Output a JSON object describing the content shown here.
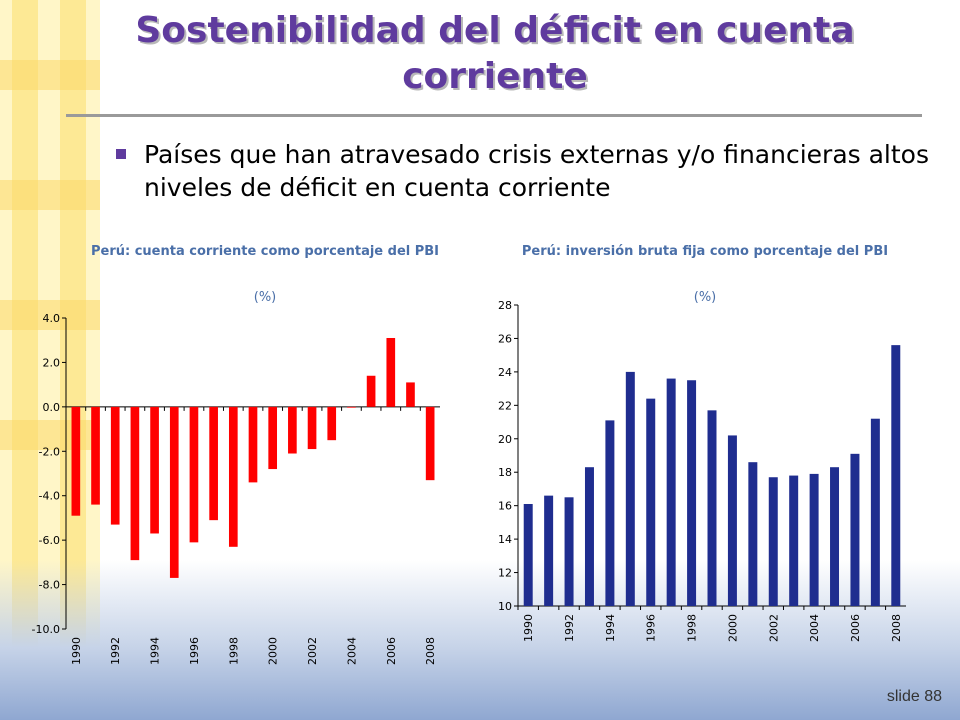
{
  "slide": {
    "title": "Sostenibilidad del déficit en cuenta corriente",
    "bullet": "Países que han atravesado crisis externas y/o financieras altos niveles de déficit en cuenta corriente",
    "slide_number": "slide 88",
    "accent_color": "#5f3b9e",
    "sidebar_colors": [
      "#fde68c",
      "#fbd86a",
      "#fff6c8"
    ]
  },
  "chart_data": [
    {
      "type": "bar",
      "title": "Perú: cuenta corriente como porcentaje del PBI",
      "subtitle": "(%)",
      "categories": [
        "1990",
        "1991",
        "1992",
        "1993",
        "1994",
        "1995",
        "1996",
        "1997",
        "1998",
        "1999",
        "2000",
        "2001",
        "2002",
        "2003",
        "2004",
        "2005",
        "2006",
        "2007",
        "2008"
      ],
      "tick_labels": [
        "1990",
        "1992",
        "1994",
        "1996",
        "1998",
        "2000",
        "2002",
        "2004",
        "2006",
        "2008"
      ],
      "values": [
        -4.9,
        -4.4,
        -5.3,
        -6.9,
        -5.7,
        -7.7,
        -6.1,
        -5.1,
        -6.3,
        -3.4,
        -2.8,
        -2.1,
        -1.9,
        -1.5,
        0.0,
        1.4,
        3.1,
        1.1,
        -3.3
      ],
      "ylim": [
        -10,
        4
      ],
      "yticks": [
        "4.0",
        "2.0",
        "0.0",
        "-2.0",
        "-4.0",
        "-6.0",
        "-8.0",
        "-10.0"
      ],
      "color": "#ff0000",
      "grid": false
    },
    {
      "type": "bar",
      "title": "Perú: inversión bruta fija como porcentaje del PBI",
      "subtitle": "(%)",
      "categories": [
        "1990",
        "1991",
        "1992",
        "1993",
        "1994",
        "1995",
        "1996",
        "1997",
        "1998",
        "1999",
        "2000",
        "2001",
        "2002",
        "2003",
        "2004",
        "2005",
        "2006",
        "2007",
        "2008"
      ],
      "tick_labels": [
        "1990",
        "1992",
        "1994",
        "1996",
        "1998",
        "2000",
        "2002",
        "2004",
        "2006",
        "2008"
      ],
      "values": [
        16.1,
        16.6,
        16.5,
        18.3,
        21.1,
        24.0,
        22.4,
        23.6,
        23.5,
        21.7,
        20.2,
        18.6,
        17.7,
        17.8,
        17.9,
        18.3,
        19.1,
        21.2,
        25.6
      ],
      "ylim": [
        10,
        28
      ],
      "yticks": [
        "28",
        "26",
        "24",
        "22",
        "20",
        "18",
        "16",
        "14",
        "12",
        "10"
      ],
      "color": "#1f2d8f",
      "grid": false
    }
  ]
}
